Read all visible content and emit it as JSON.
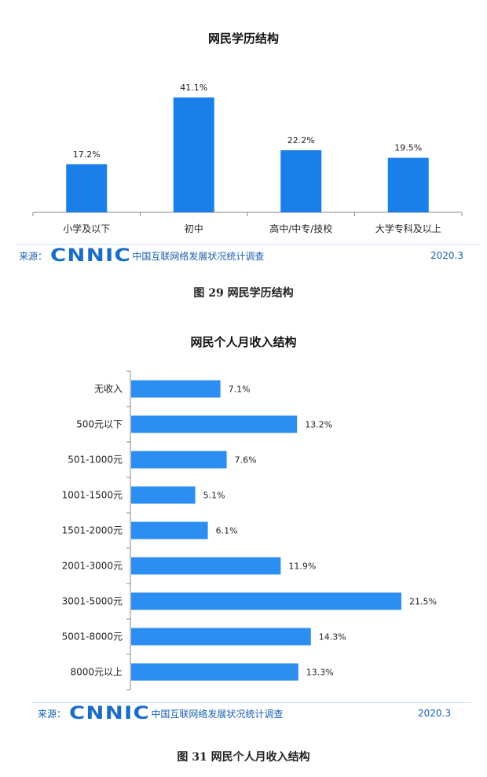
{
  "chart_data": [
    {
      "type": "bar",
      "title": "网民学历结构",
      "categories": [
        "小学及以下",
        "初中",
        "高中/中专/技校",
        "大学专科及以上"
      ],
      "values": [
        17.2,
        41.1,
        22.2,
        19.5
      ],
      "value_labels": [
        "17.2%",
        "41.1%",
        "22.2%",
        "19.5%"
      ],
      "unit": "%",
      "ylim": [
        0,
        45
      ],
      "grid": false,
      "bar_color": "#1a7fe8",
      "source_label": "来源：",
      "source_logo": "CNNIC",
      "source_survey": "中国互联网络发展状况统计调查",
      "source_date": "2020.3",
      "caption": "图  29    网民学历结构"
    },
    {
      "type": "bar",
      "orientation": "horizontal",
      "title": "网民个人月收入结构",
      "categories": [
        "无收入",
        "500元以下",
        "501-1000元",
        "1001-1500元",
        "1501-2000元",
        "2001-3000元",
        "3001-5000元",
        "5001-8000元",
        "8000元以上"
      ],
      "values": [
        7.1,
        13.2,
        7.6,
        5.1,
        6.1,
        11.9,
        21.5,
        14.3,
        13.3
      ],
      "value_labels": [
        "7.1%",
        "13.2%",
        "7.6%",
        "5.1%",
        "6.1%",
        "11.9%",
        "21.5%",
        "14.3%",
        "13.3%"
      ],
      "unit": "%",
      "xlim": [
        0,
        22
      ],
      "grid": false,
      "bar_color": "#2b8ef0",
      "source_label": "来源：",
      "source_logo": "CNNIC",
      "source_survey": "中国互联网络发展状况统计调查",
      "source_date": "2020.3",
      "caption": "图  31    网民个人月收入结构"
    }
  ],
  "colors": {
    "accent": "#1a6cc8",
    "divider": "#cfe1f3",
    "axis": "#888888"
  }
}
